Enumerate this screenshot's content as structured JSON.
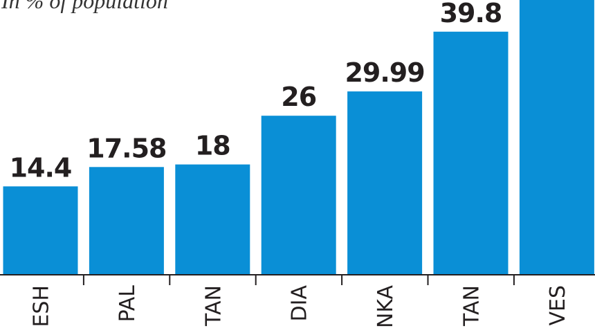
{
  "chart_data": {
    "type": "bar",
    "title": "In % of population",
    "categories": [
      "ESH",
      "PAL",
      "TAN",
      "DIA",
      "NKA",
      "TAN",
      "VES"
    ],
    "values": [
      14.4,
      17.58,
      18,
      26,
      29.99,
      39.8,
      47
    ],
    "color": "#0a8fd6"
  }
}
